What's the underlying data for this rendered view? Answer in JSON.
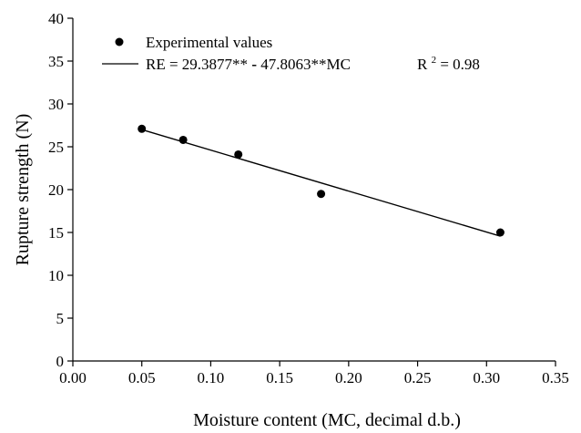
{
  "chart_data": {
    "type": "scatter",
    "xlabel": "Moisture content (MC, decimal d.b.)",
    "ylabel": "Rupture strength (N)",
    "xlim": [
      0,
      0.35
    ],
    "ylim": [
      0,
      40
    ],
    "x_ticks": [
      "0.00",
      "0.05",
      "0.10",
      "0.15",
      "0.20",
      "0.25",
      "0.30",
      "0.35"
    ],
    "y_ticks": [
      "0",
      "5",
      "10",
      "15",
      "20",
      "25",
      "30",
      "35",
      "40"
    ],
    "grid": false,
    "legend_position": "top-left",
    "series": [
      {
        "name": "Experimental values",
        "kind": "scatter",
        "color": "#000000",
        "points": [
          {
            "x": 0.05,
            "y": 27.1
          },
          {
            "x": 0.08,
            "y": 25.8
          },
          {
            "x": 0.12,
            "y": 24.1
          },
          {
            "x": 0.18,
            "y": 19.5
          },
          {
            "x": 0.31,
            "y": 15.0
          }
        ]
      },
      {
        "kind": "line",
        "color": "#000000",
        "equation": {
          "lhs": "RE = 29.3877** ",
          "minus": "-",
          " rhs": " 47.8063**MC",
          "r2_prefix": "R",
          "r2_sup": "2",
          "r2_suffix": " = 0.98"
        },
        "intercept": 29.3877,
        "slope": -47.8063,
        "x_range": [
          0.05,
          0.31
        ]
      }
    ]
  }
}
